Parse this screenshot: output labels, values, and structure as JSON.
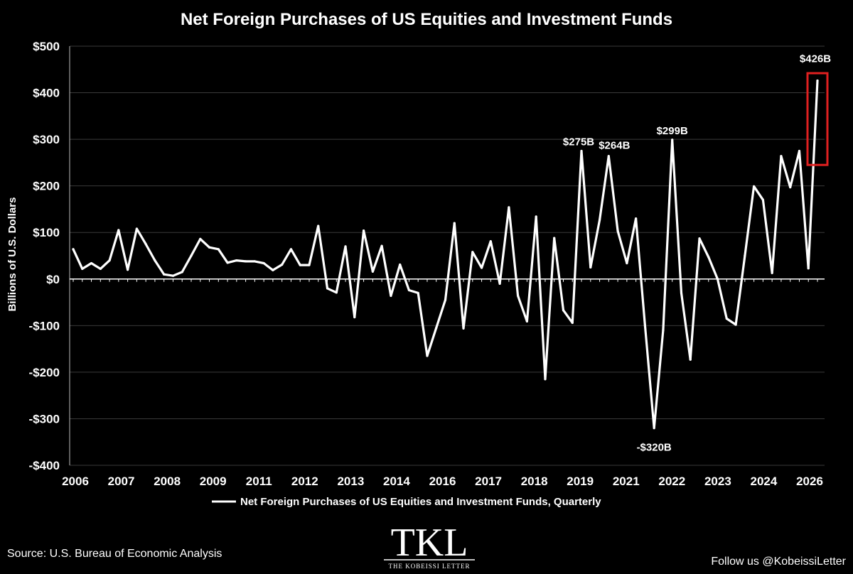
{
  "page": {
    "source": "Source: U.S. Bureau of Economic Analysis",
    "follow": "Follow us @KobeissiLetter",
    "logo_text": "TKL",
    "logo_subtext": "THE KOBEISSI LETTER"
  },
  "chart_data": {
    "type": "line",
    "title": "Net Foreign Purchases of US Equities and Investment Funds",
    "ylabel": "Billions of U.S. Dollars",
    "xlabel": "",
    "ylim": [
      -400,
      500
    ],
    "y_ticks": [
      500,
      400,
      300,
      200,
      100,
      0,
      -100,
      -200,
      -300,
      -400
    ],
    "y_tick_labels": [
      "$500",
      "$400",
      "$300",
      "$200",
      "$100",
      "$0",
      "-$100",
      "-$200",
      "-$300",
      "-$400"
    ],
    "x_tick_labels": [
      "2006",
      "2007",
      "2008",
      "2009",
      "2011",
      "2012",
      "2013",
      "2014",
      "2016",
      "2017",
      "2018",
      "2019",
      "2021",
      "2022",
      "2023",
      "2024",
      "2026"
    ],
    "grid": true,
    "legend_position": "bottom",
    "series": [
      {
        "name": "Net Foreign Purchases of US Equities and Investment Funds, Quarterly",
        "color": "#ffffff",
        "values": [
          64,
          22,
          34,
          22,
          40,
          105,
          20,
          108,
          75,
          40,
          10,
          7,
          15,
          50,
          86,
          68,
          64,
          35,
          40,
          38,
          38,
          34,
          19,
          31,
          64,
          30,
          30,
          114,
          -20,
          -29,
          70,
          -82,
          104,
          16,
          71,
          -36,
          31,
          -24,
          -30,
          -165,
          -105,
          -45,
          120,
          -106,
          58,
          24,
          81,
          -10,
          154,
          -36,
          -91,
          134,
          -215,
          88,
          -67,
          -94,
          275,
          25,
          127,
          264,
          103,
          34,
          130,
          -100,
          -320,
          -110,
          299,
          -30,
          -173,
          87,
          47,
          0,
          -85,
          -98,
          50,
          199,
          170,
          13,
          264,
          197,
          275,
          23,
          426
        ]
      }
    ],
    "annotations": [
      {
        "label": "$275B",
        "index": 56,
        "value": 275
      },
      {
        "label": "$264B",
        "index": 59,
        "value": 264
      },
      {
        "label": "$299B",
        "index": 66,
        "value": 299
      },
      {
        "label": "-$320B",
        "index": 64,
        "value": -320
      },
      {
        "label": "$426B",
        "index": 82,
        "value": 426
      }
    ],
    "highlight": {
      "from_index": 82,
      "to_index": 82,
      "ymin": 245,
      "ymax": 442,
      "color": "#e02020"
    }
  }
}
